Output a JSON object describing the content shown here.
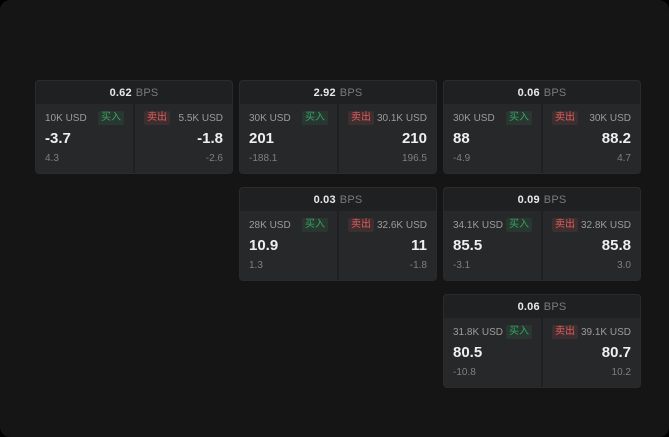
{
  "labels": {
    "buy": "买入",
    "sell": "卖出",
    "bps_suffix": "BPS"
  },
  "colors": {
    "buy": "#36a366",
    "sell": "#e05c5c"
  },
  "cards": [
    {
      "bps": "0.62",
      "buy": {
        "size": "10K USD",
        "price": "-3.7",
        "delta": "4.3"
      },
      "sell": {
        "size": "5.5K USD",
        "price": "-1.8",
        "delta": "-2.6"
      }
    },
    {
      "bps": "2.92",
      "buy": {
        "size": "30K USD",
        "price": "201",
        "delta": "-188.1"
      },
      "sell": {
        "size": "30.1K USD",
        "price": "210",
        "delta": "196.5"
      }
    },
    {
      "bps": "0.06",
      "buy": {
        "size": "30K USD",
        "price": "88",
        "delta": "-4.9"
      },
      "sell": {
        "size": "30K USD",
        "price": "88.2",
        "delta": "4.7"
      }
    },
    {
      "bps": "0.03",
      "buy": {
        "size": "28K USD",
        "price": "10.9",
        "delta": "1.3"
      },
      "sell": {
        "size": "32.6K USD",
        "price": "11",
        "delta": "-1.8"
      }
    },
    {
      "bps": "0.09",
      "buy": {
        "size": "34.1K USD",
        "price": "85.5",
        "delta": "-3.1"
      },
      "sell": {
        "size": "32.8K USD",
        "price": "85.8",
        "delta": "3.0"
      }
    },
    {
      "bps": "0.06",
      "buy": {
        "size": "31.8K USD",
        "price": "80.5",
        "delta": "-10.8"
      },
      "sell": {
        "size": "39.1K USD",
        "price": "80.7",
        "delta": "10.2"
      }
    }
  ]
}
